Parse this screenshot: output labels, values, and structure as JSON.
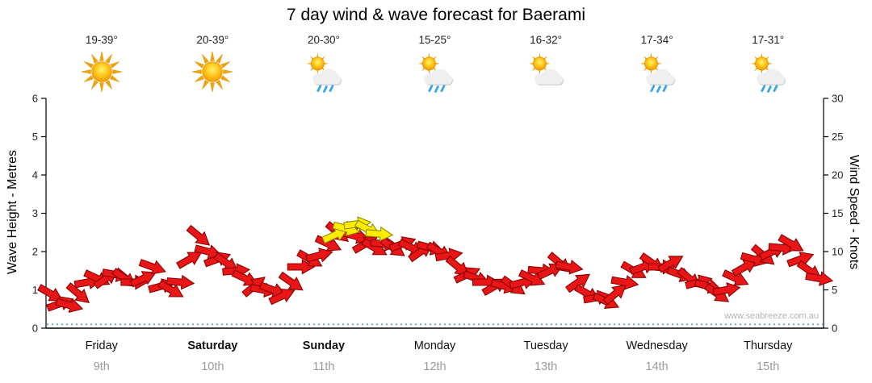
{
  "title": "7 day wind & wave forecast for Baerami",
  "watermark": "www.seabreeze.com.au",
  "colors": {
    "arrow_red": "#e81616",
    "arrow_red_stroke": "#8e0000",
    "arrow_yellow": "#ffec00",
    "arrow_yellow_stroke": "#8c8c00",
    "wave_blue": "#62b1dc",
    "axis_black": "#000000",
    "day_name": "#111111",
    "day_date": "#9a9a9a"
  },
  "forecast": {
    "days": [
      {
        "temp": "19-39°",
        "icon": "sunny"
      },
      {
        "temp": "20-39°",
        "icon": "sunny"
      },
      {
        "temp": "20-30°",
        "icon": "sun-showers"
      },
      {
        "temp": "15-25°",
        "icon": "sun-showers"
      },
      {
        "temp": "16-32°",
        "icon": "partly-cloudy"
      },
      {
        "temp": "17-34°",
        "icon": "sun-showers"
      },
      {
        "temp": "17-31°",
        "icon": "sun-showers"
      }
    ]
  },
  "chart_data": {
    "type": "wind-arrows",
    "title": "7 day wind & wave forecast for Baerami",
    "y_left": {
      "label": "Wave Height - Metres",
      "range": [
        0,
        6
      ],
      "ticks": [
        0,
        1,
        2,
        3,
        4,
        5,
        6
      ]
    },
    "y_right": {
      "label": "Wind Speed - Knots",
      "range": [
        0,
        30
      ],
      "ticks": [
        0,
        5,
        10,
        15,
        20,
        25,
        30
      ]
    },
    "x_days": [
      {
        "name": "Friday",
        "date": "9th",
        "bold": false
      },
      {
        "name": "Saturday",
        "date": "10th",
        "bold": true
      },
      {
        "name": "Sunday",
        "date": "11th",
        "bold": true
      },
      {
        "name": "Monday",
        "date": "12th",
        "bold": false
      },
      {
        "name": "Tuesday",
        "date": "13th",
        "bold": false
      },
      {
        "name": "Wednesday",
        "date": "14th",
        "bold": false
      },
      {
        "name": "Thursday",
        "date": "15th",
        "bold": false
      }
    ],
    "wave": {
      "metres": 0.1,
      "style": "dashed"
    },
    "wind": {
      "points_per_day": 12,
      "knots": [
        4.5,
        3.2,
        3.0,
        4.5,
        6.0,
        6.5,
        6.5,
        7.0,
        6.5,
        6.0,
        6.5,
        8.0,
        5.5,
        5.0,
        6.0,
        9.0,
        12.0,
        10.0,
        9.0,
        8.5,
        7.5,
        6.5,
        5.5,
        5.0,
        5.0,
        4.2,
        6.0,
        8.0,
        9.0,
        9.5,
        11.0,
        12.5,
        13.0,
        12.0,
        11.0,
        10.5,
        11.0,
        10.5,
        11.0,
        10.5,
        10.0,
        10.5,
        10.0,
        9.5,
        8.0,
        7.0,
        6.5,
        6.0,
        5.5,
        5.5,
        5.5,
        6.0,
        6.5,
        7.5,
        7.5,
        8.5,
        8.0,
        6.0,
        4.5,
        4.0,
        3.5,
        4.5,
        6.0,
        7.5,
        8.0,
        8.5,
        8.0,
        8.5,
        7.0,
        6.5,
        6.0,
        5.5,
        4.5,
        5.0,
        6.5,
        8.0,
        9.0,
        9.5,
        10.0,
        10.5,
        11.0,
        9.0,
        7.5,
        6.5
      ],
      "dirs": [
        30,
        -20,
        15,
        40,
        -10,
        25,
        -35,
        10,
        35,
        0,
        -25,
        20,
        -15,
        30,
        5,
        -30,
        40,
        15,
        -20,
        35,
        -5,
        25,
        -40,
        10,
        20,
        -25,
        35,
        0,
        30,
        -15,
        25,
        40,
        -10,
        15,
        -30,
        30,
        5,
        35,
        -20,
        25,
        -35,
        15,
        30,
        -10,
        40,
        -25,
        20,
        0,
        -30,
        15,
        35,
        -15,
        25,
        5,
        -25,
        40,
        10,
        -35,
        30,
        -10,
        25,
        -40,
        10,
        30,
        -20,
        35,
        0,
        -30,
        20,
        40,
        -15,
        15,
        35,
        -10,
        25,
        -30,
        15,
        40,
        -25,
        5,
        30,
        -20,
        35,
        10
      ]
    },
    "wind_peak_yellow": [
      {
        "t": 0.372,
        "knots": 12.2,
        "dir": -25
      },
      {
        "t": 0.386,
        "knots": 13.0,
        "dir": 15
      },
      {
        "t": 0.4,
        "knots": 13.6,
        "dir": -8
      },
      {
        "t": 0.414,
        "knots": 12.9,
        "dir": 28
      },
      {
        "t": 0.428,
        "knots": 12.3,
        "dir": 5
      }
    ]
  }
}
